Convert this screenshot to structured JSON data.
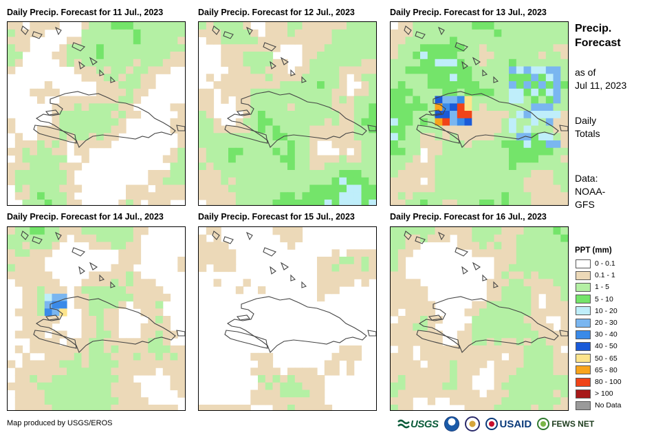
{
  "panels": [
    {
      "title": "Daily Precip. Forecast for 11 Jul., 2023",
      "seed": 11,
      "profile": "dry"
    },
    {
      "title": "Daily Precip. Forecast for 12 Jul., 2023",
      "seed": 12,
      "profile": "southeast"
    },
    {
      "title": "Daily Precip. Forecast for 13 Jul., 2023",
      "seed": 13,
      "profile": "wet"
    },
    {
      "title": "Daily Precip. Forecast for 14 Jul., 2023",
      "seed": 14,
      "profile": "west"
    },
    {
      "title": "Daily Precip. Forecast for 15 Jul., 2023",
      "seed": 15,
      "profile": "driest"
    },
    {
      "title": "Daily Precip. Forecast for 16 Jul., 2023",
      "seed": 16,
      "profile": "east"
    }
  ],
  "side": {
    "title_line1": "Precip.",
    "title_line2": "Forecast",
    "as_of_line1": "as of",
    "as_of_line2": "Jul 11, 2023",
    "totals_line1": "Daily",
    "totals_line2": "Totals",
    "data_line1": "Data:",
    "data_line2": "NOAA-",
    "data_line3": "GFS"
  },
  "legend": {
    "title": "PPT (mm)",
    "items": [
      {
        "label": "0 - 0.1",
        "color": "#ffffff"
      },
      {
        "label": "0.1 - 1",
        "color": "#ecd9b8"
      },
      {
        "label": "1 - 5",
        "color": "#b4f0a4"
      },
      {
        "label": "5 - 10",
        "color": "#74e46a"
      },
      {
        "label": "10 - 20",
        "color": "#bfeefa"
      },
      {
        "label": "20 - 30",
        "color": "#7ab6f0"
      },
      {
        "label": "30 - 40",
        "color": "#3a8ae8"
      },
      {
        "label": "40 - 50",
        "color": "#1a5ad8"
      },
      {
        "label": "50 - 65",
        "color": "#fce48c"
      },
      {
        "label": "65 - 80",
        "color": "#f8a41c"
      },
      {
        "label": "80 - 100",
        "color": "#f04418"
      },
      {
        "label": "> 100",
        "color": "#a81a1a"
      },
      {
        "label": "No Data",
        "color": "#9a9a9a"
      }
    ]
  },
  "footer": {
    "credit": "Map produced by USGS/EROS",
    "logo_usgs": "USGS",
    "logo_usaid": "USAID",
    "logo_fews": "FEWS NET"
  }
}
